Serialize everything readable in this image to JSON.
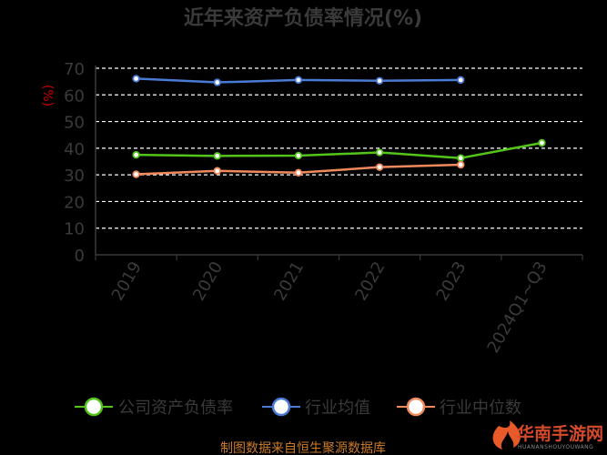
{
  "chart_data": {
    "type": "line",
    "title": "近年来资产负债率情况(%)",
    "ylabel": "(%)",
    "categories": [
      "2019",
      "2020",
      "2021",
      "2022",
      "2023",
      "2024Q1~Q3"
    ],
    "ylim": [
      0,
      70
    ],
    "yticks": [
      0,
      10,
      20,
      30,
      40,
      50,
      60,
      70
    ],
    "grid": true,
    "legend_position": "bottom",
    "series": [
      {
        "name": "公司资产负债率",
        "color": "#52c41a",
        "values": [
          37.5,
          37.1,
          37.2,
          38.4,
          36.3,
          42.0
        ]
      },
      {
        "name": "行业均值",
        "color": "#4a7bd4",
        "values": [
          66.1,
          64.7,
          65.6,
          65.3,
          65.6,
          null
        ]
      },
      {
        "name": "行业中位数",
        "color": "#f08a5d",
        "values": [
          30.2,
          31.5,
          30.8,
          32.9,
          33.8,
          null
        ]
      }
    ]
  },
  "footer": "制图数据来自恒生聚源数据库",
  "watermark": {
    "text": "华南手游网",
    "sub": "HUANANSHOUYOUWANG"
  },
  "colors": {
    "background": "#000000",
    "text": "#3a3a3a",
    "grid": "#ffffff",
    "unit": "#cc0000",
    "footer": "#c97a2a"
  }
}
